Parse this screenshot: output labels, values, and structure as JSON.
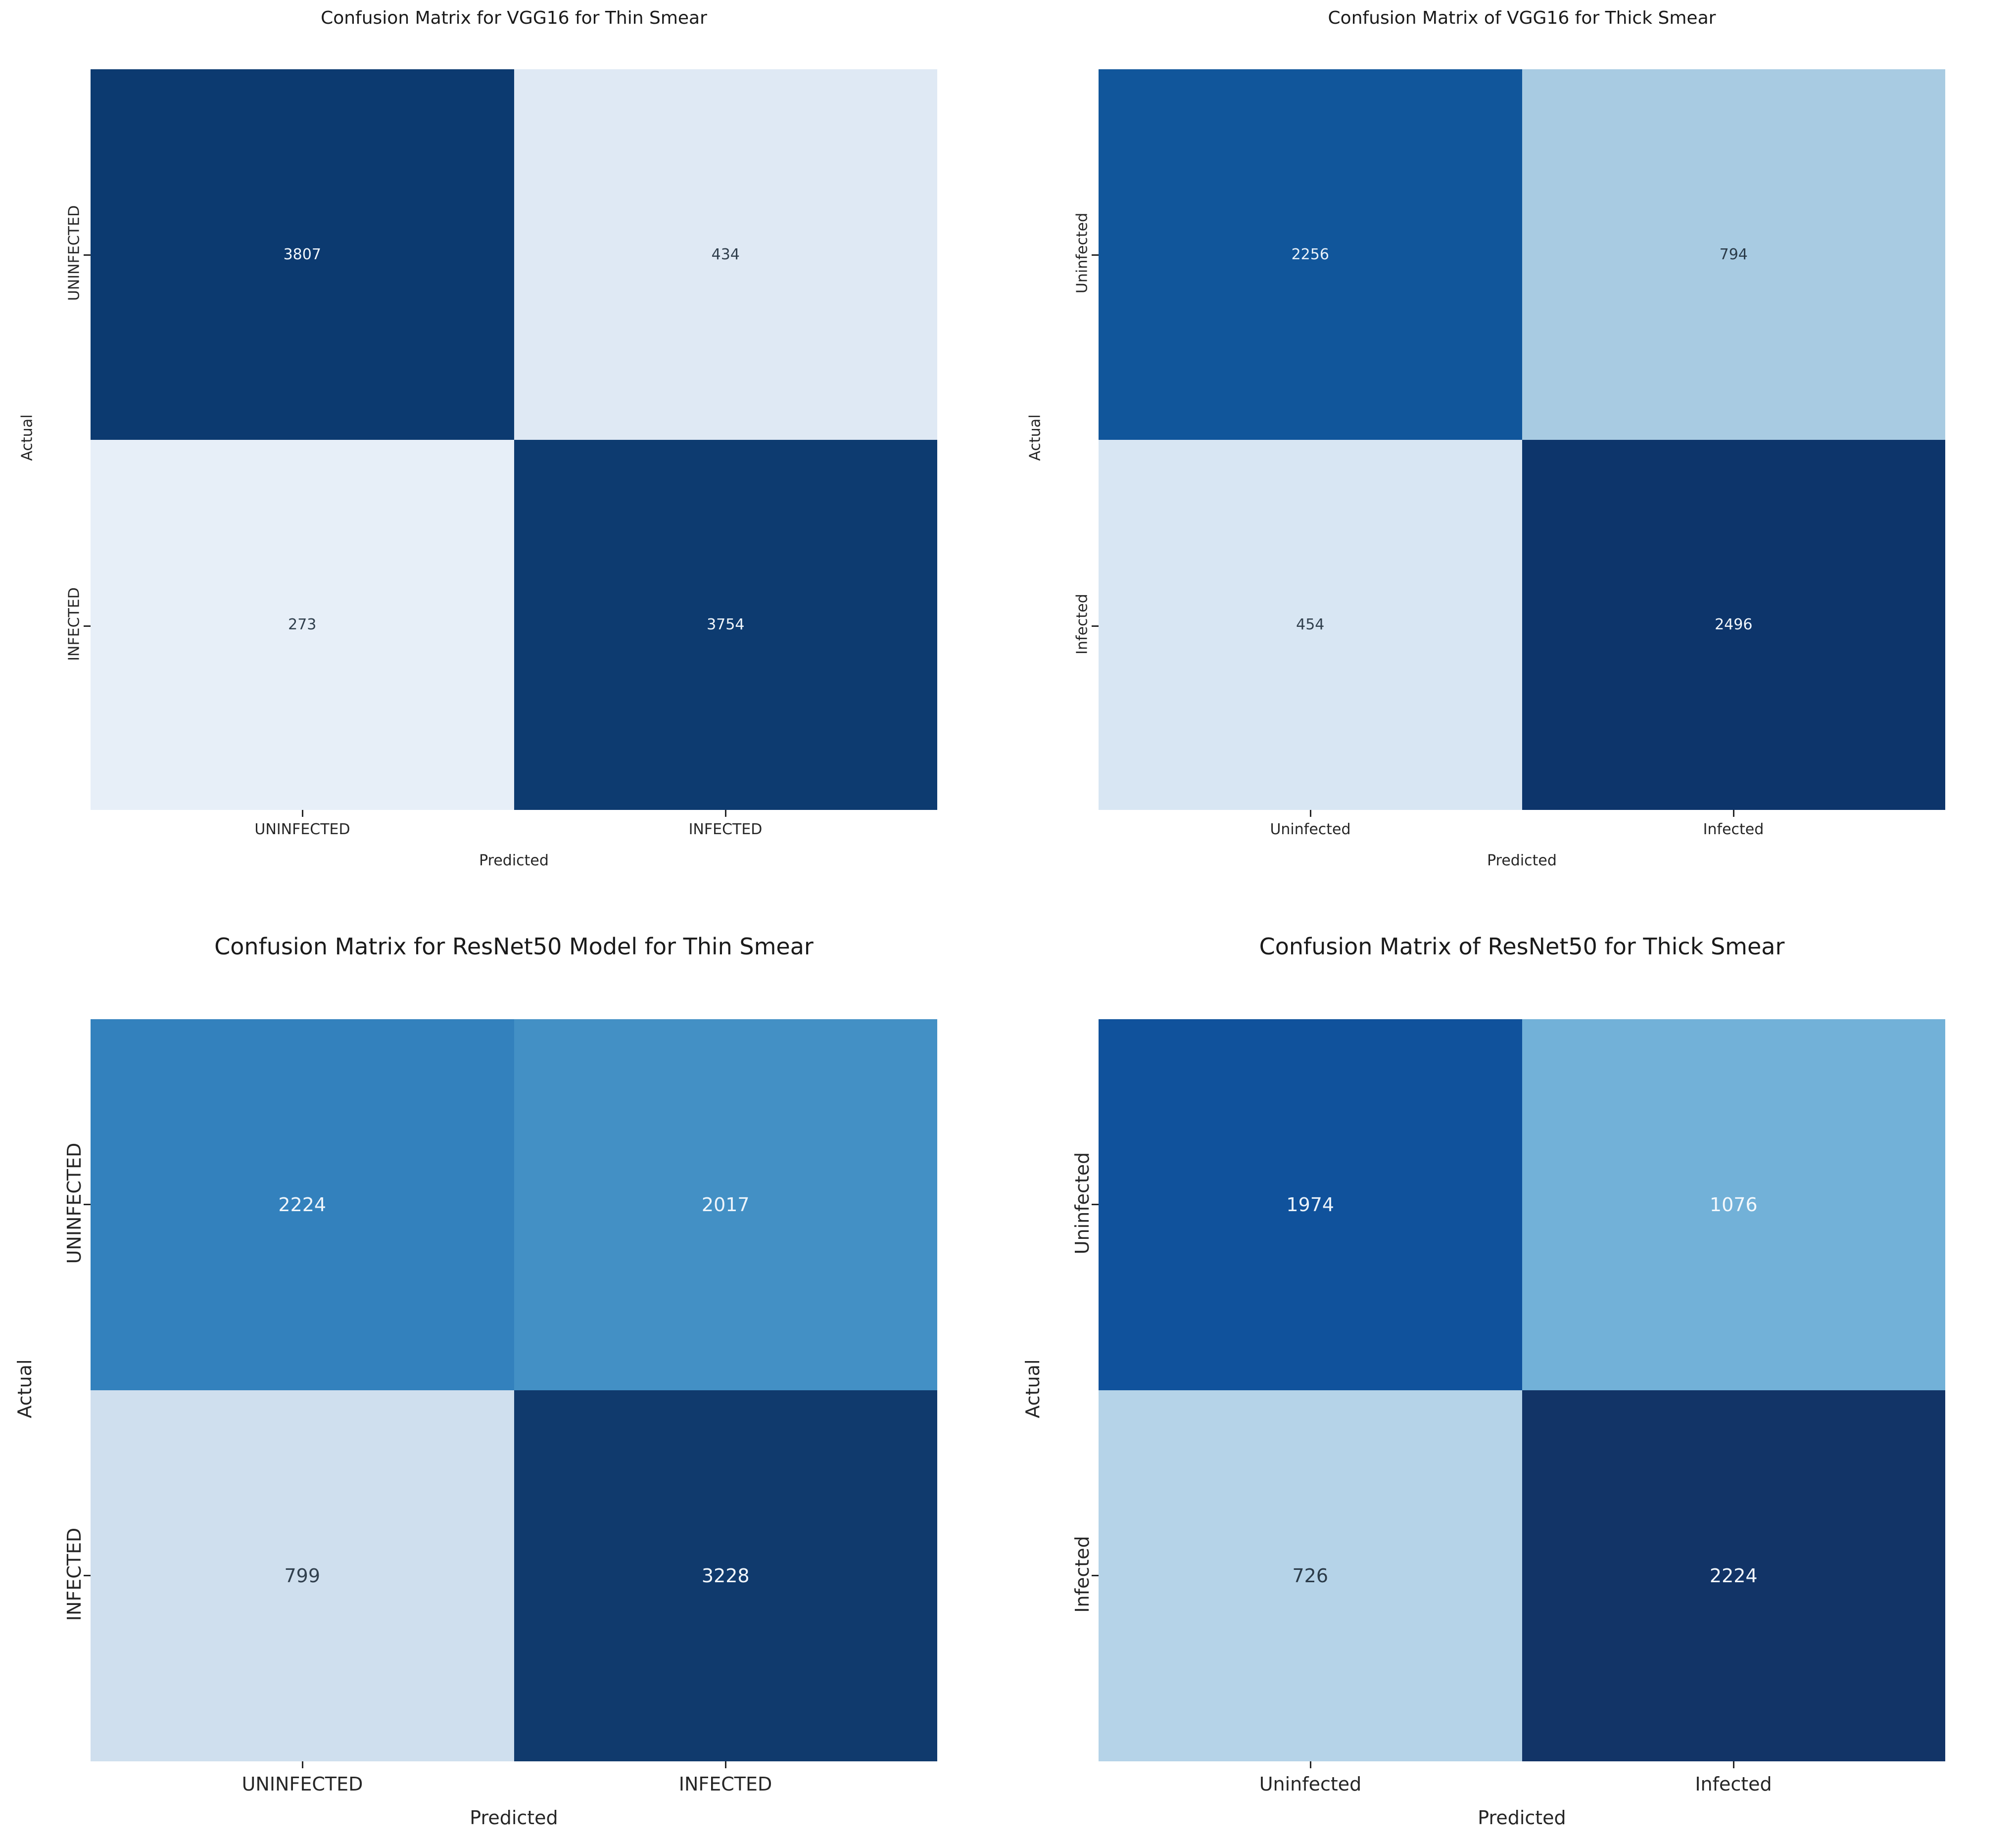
{
  "figures": [
    {
      "title": "Confusion Matrix for VGG16 for Thin Smear",
      "xlabel": "Predicted",
      "ylabel": "Actual",
      "xticks": [
        "UNINFECTED",
        "INFECTED"
      ],
      "yticks": [
        "UNINFECTED",
        "INFECTED"
      ],
      "cells": [
        {
          "value": "3807",
          "bg": "#0c3a70",
          "fg": "#f2f7fc"
        },
        {
          "value": "434",
          "bg": "#dfe9f4",
          "fg": "#31404e"
        },
        {
          "value": "273",
          "bg": "#e7eff8",
          "fg": "#31404e"
        },
        {
          "value": "3754",
          "bg": "#0d3b70",
          "fg": "#f2f7fc"
        }
      ]
    },
    {
      "title": "Confusion Matrix of VGG16 for Thick Smear",
      "xlabel": "Predicted",
      "ylabel": "Actual",
      "xticks": [
        "Uninfected",
        "Infected"
      ],
      "yticks": [
        "Uninfected",
        "Infected"
      ],
      "cells": [
        {
          "value": "2256",
          "bg": "#11569b",
          "fg": "#e8f1f9"
        },
        {
          "value": "794",
          "bg": "#a8cbe2",
          "fg": "#2b3b49"
        },
        {
          "value": "454",
          "bg": "#d8e6f3",
          "fg": "#31404e"
        },
        {
          "value": "2496",
          "bg": "#0d356b",
          "fg": "#f2f7fc"
        }
      ]
    },
    {
      "title": "Confusion Matrix for ResNet50 Model for Thin Smear",
      "xlabel": "Predicted",
      "ylabel": "Actual",
      "xticks": [
        "UNINFECTED",
        "INFECTED"
      ],
      "yticks": [
        "UNINFECTED",
        "INFECTED"
      ],
      "cells": [
        {
          "value": "2224",
          "bg": "#3381bd",
          "fg": "#eef5fb"
        },
        {
          "value": "2017",
          "bg": "#4390c5",
          "fg": "#eef5fb"
        },
        {
          "value": "799",
          "bg": "#cfdfee",
          "fg": "#31404e"
        },
        {
          "value": "3228",
          "bg": "#103a6d",
          "fg": "#f2f7fc"
        }
      ]
    },
    {
      "title": "Confusion Matrix of ResNet50 for Thick Smear",
      "xlabel": "Predicted",
      "ylabel": "Actual",
      "xticks": [
        "Uninfected",
        "Infected"
      ],
      "yticks": [
        "Uninfected",
        "Infected"
      ],
      "cells": [
        {
          "value": "1974",
          "bg": "#10529c",
          "fg": "#eaf2fa"
        },
        {
          "value": "1076",
          "bg": "#72b1d8",
          "fg": "#f4f9fd"
        },
        {
          "value": "726",
          "bg": "#b5d3e8",
          "fg": "#2b3b49"
        },
        {
          "value": "2224",
          "bg": "#123467",
          "fg": "#f2f7fc"
        }
      ]
    }
  ],
  "chart_data": [
    {
      "type": "heatmap",
      "title": "Confusion Matrix for VGG16 for Thin Smear",
      "xlabel": "Predicted",
      "ylabel": "Actual",
      "x_ticklabels": [
        "UNINFECTED",
        "INFECTED"
      ],
      "y_ticklabels": [
        "UNINFECTED",
        "INFECTED"
      ],
      "values": [
        [
          3807,
          434
        ],
        [
          273,
          3754
        ]
      ],
      "colormap": "Blues",
      "legend": "none",
      "grid": false
    },
    {
      "type": "heatmap",
      "title": "Confusion Matrix of VGG16 for Thick Smear",
      "xlabel": "Predicted",
      "ylabel": "Actual",
      "x_ticklabels": [
        "Uninfected",
        "Infected"
      ],
      "y_ticklabels": [
        "Uninfected",
        "Infected"
      ],
      "values": [
        [
          2256,
          794
        ],
        [
          454,
          2496
        ]
      ],
      "colormap": "Blues",
      "legend": "none",
      "grid": false
    },
    {
      "type": "heatmap",
      "title": "Confusion Matrix for ResNet50 Model for Thin Smear",
      "xlabel": "Predicted",
      "ylabel": "Actual",
      "x_ticklabels": [
        "UNINFECTED",
        "INFECTED"
      ],
      "y_ticklabels": [
        "UNINFECTED",
        "INFECTED"
      ],
      "values": [
        [
          2224,
          2017
        ],
        [
          799,
          3228
        ]
      ],
      "colormap": "Blues",
      "legend": "none",
      "grid": false
    },
    {
      "type": "heatmap",
      "title": "Confusion Matrix of ResNet50 for Thick Smear",
      "xlabel": "Predicted",
      "ylabel": "Actual",
      "x_ticklabels": [
        "Uninfected",
        "Infected"
      ],
      "y_ticklabels": [
        "Uninfected",
        "Infected"
      ],
      "values": [
        [
          1974,
          1076
        ],
        [
          726,
          2224
        ]
      ],
      "colormap": "Blues",
      "legend": "none",
      "grid": false
    }
  ]
}
